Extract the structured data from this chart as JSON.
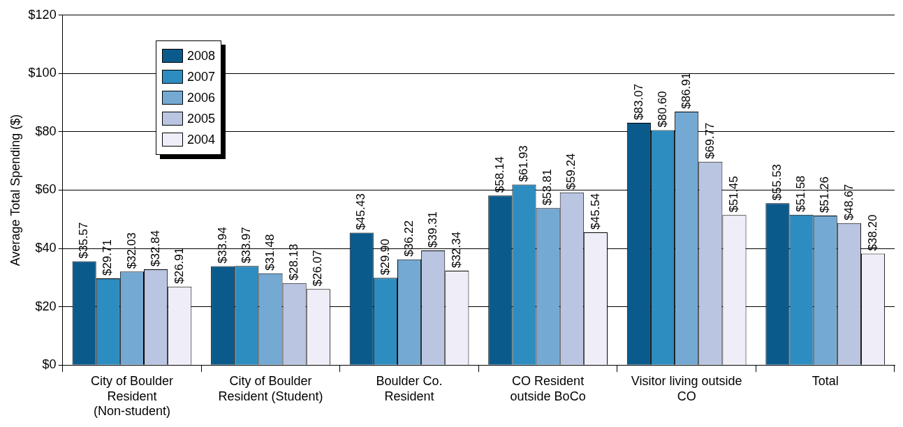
{
  "chart_data": {
    "type": "bar",
    "ylabel": "Average Total Spending ($)",
    "categories": [
      "City of Boulder Resident (Non-student)",
      "City of Boulder Resident (Student)",
      "Boulder Co. Resident",
      "CO Resident outside BoCo",
      "Visitor living outside CO",
      "Total"
    ],
    "series": [
      {
        "name": "2008",
        "color": "#0b5a8c",
        "values": [
          35.57,
          33.94,
          45.43,
          58.14,
          83.07,
          55.53
        ],
        "value_labels": [
          "$35.57",
          "$33.94",
          "$45.43",
          "$58.14",
          "$83.07",
          "$55.53"
        ]
      },
      {
        "name": "2007",
        "color": "#2e8dc0",
        "values": [
          29.71,
          33.97,
          29.9,
          61.93,
          80.6,
          51.58
        ],
        "value_labels": [
          "$29.71",
          "$33.97",
          "$29.90",
          "$61.93",
          "$80.60",
          "$51.58"
        ]
      },
      {
        "name": "2006",
        "color": "#74a9d3",
        "values": [
          32.03,
          31.48,
          36.22,
          53.81,
          86.91,
          51.26
        ],
        "value_labels": [
          "$32.03",
          "$31.48",
          "$36.22",
          "$53.81",
          "$86.91",
          "$51.26"
        ]
      },
      {
        "name": "2005",
        "color": "#b9c5e1",
        "values": [
          32.84,
          28.13,
          39.31,
          59.24,
          69.77,
          48.67
        ],
        "value_labels": [
          "$32.84",
          "$28.13",
          "$39.31",
          "$59.24",
          "$69.77",
          "$48.67"
        ]
      },
      {
        "name": "2004",
        "color": "#efeef8",
        "values": [
          26.91,
          26.07,
          32.34,
          45.54,
          51.45,
          38.2
        ],
        "value_labels": [
          "$26.91",
          "$26.07",
          "$32.34",
          "$45.54",
          "$51.45",
          "$38.20"
        ]
      }
    ],
    "ylim": [
      0,
      120
    ],
    "yticks": [
      {
        "value": 0,
        "label": "$0"
      },
      {
        "value": 20,
        "label": "$20"
      },
      {
        "value": 40,
        "label": "$40"
      },
      {
        "value": 60,
        "label": "$60"
      },
      {
        "value": 80,
        "label": "$80"
      },
      {
        "value": 100,
        "label": "$100"
      },
      {
        "value": 120,
        "label": "$120"
      }
    ],
    "grid": "y",
    "legend": "top left"
  }
}
